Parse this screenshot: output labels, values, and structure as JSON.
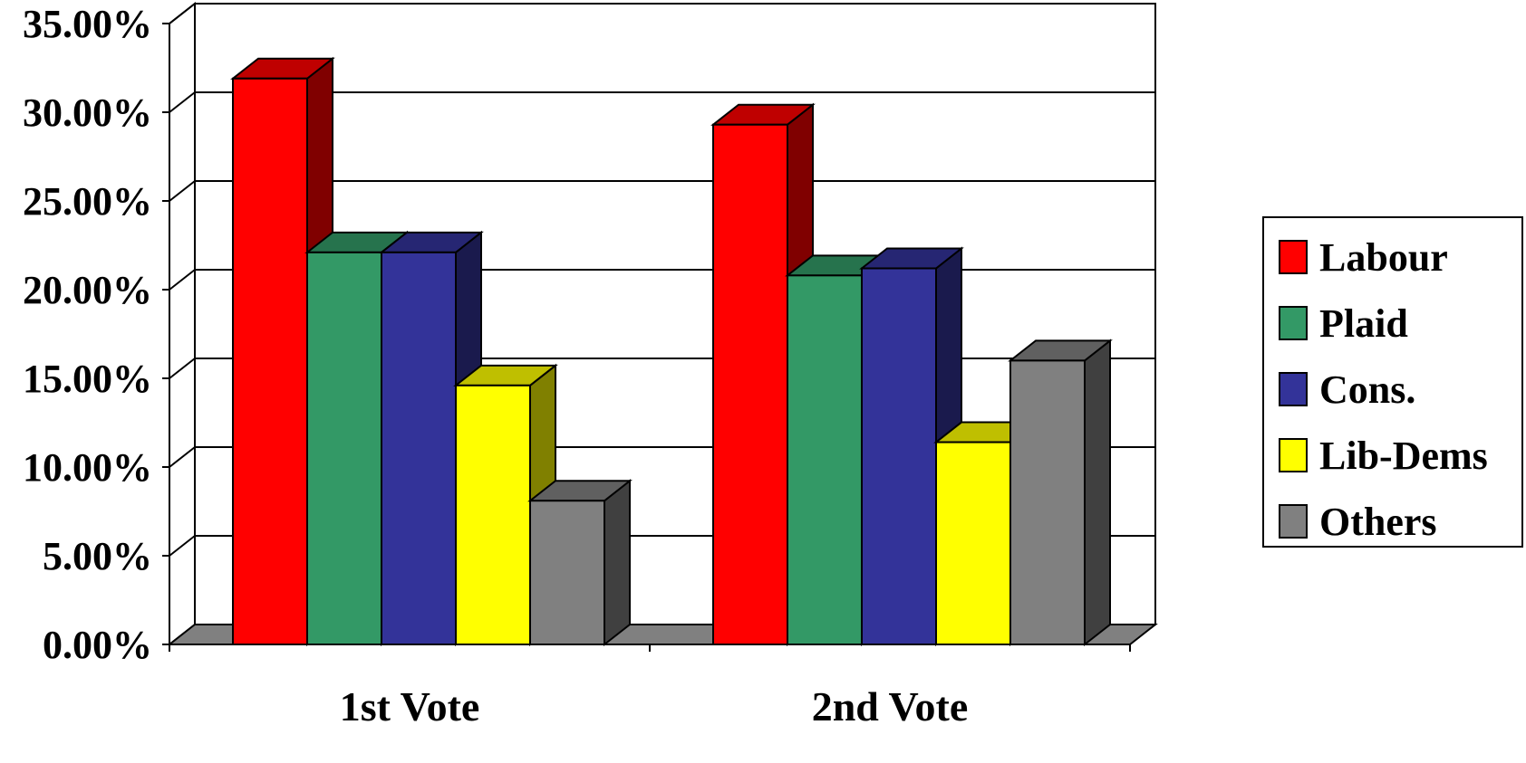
{
  "chart_data": {
    "type": "bar",
    "title": "",
    "xlabel": "",
    "ylabel": "",
    "categories": [
      "1st Vote",
      "2nd Vote"
    ],
    "series": [
      {
        "name": "Labour",
        "values": [
          31.9,
          29.3
        ],
        "color": "#ff0000"
      },
      {
        "name": "Plaid",
        "values": [
          22.1,
          20.8
        ],
        "color": "#339966"
      },
      {
        "name": "Cons.",
        "values": [
          22.1,
          21.2
        ],
        "color": "#333399"
      },
      {
        "name": "Lib-Dems",
        "values": [
          14.6,
          11.4
        ],
        "color": "#ffff00"
      },
      {
        "name": "Others",
        "values": [
          8.1,
          16.0
        ],
        "color": "#808080"
      }
    ],
    "ylim": [
      0,
      35
    ],
    "yticks": [
      0,
      5,
      10,
      15,
      20,
      25,
      30,
      35
    ],
    "ytick_labels": [
      "0.00%",
      "5.00%",
      "10.00%",
      "15.00%",
      "20.00%",
      "25.00%",
      "30.00%",
      "35.00%"
    ],
    "grid": true,
    "legend_position": "right",
    "style": "3d-clustered-column"
  }
}
